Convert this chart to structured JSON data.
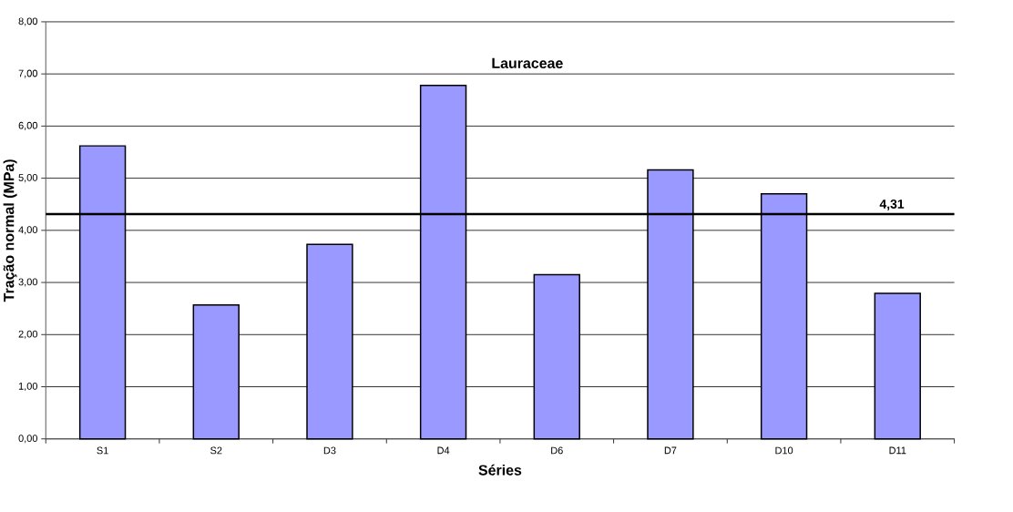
{
  "chart_data": {
    "type": "bar",
    "title": "Lauraceae",
    "xlabel": "Séries",
    "ylabel": "Tração normal (MPa)",
    "categories": [
      "S1",
      "S2",
      "D3",
      "D4",
      "D6",
      "D7",
      "D10",
      "D11"
    ],
    "values": [
      5.62,
      2.57,
      3.73,
      6.78,
      3.15,
      5.16,
      4.7,
      2.79
    ],
    "color": "#9999ff",
    "ylim": [
      0,
      8
    ],
    "yticks": [
      {
        "value": 0,
        "label": "0,00"
      },
      {
        "value": 1,
        "label": "1,00"
      },
      {
        "value": 2,
        "label": "2,00"
      },
      {
        "value": 3,
        "label": "3,00"
      },
      {
        "value": 4,
        "label": "4,00"
      },
      {
        "value": 5,
        "label": "5,00"
      },
      {
        "value": 6,
        "label": "6,00"
      },
      {
        "value": 7,
        "label": "7,00"
      },
      {
        "value": 8,
        "label": "8,00"
      }
    ],
    "grid": "y",
    "ref_lines": [
      {
        "axis": "y",
        "value": 4.31,
        "label": "4,31",
        "color": "#000000"
      }
    ]
  }
}
